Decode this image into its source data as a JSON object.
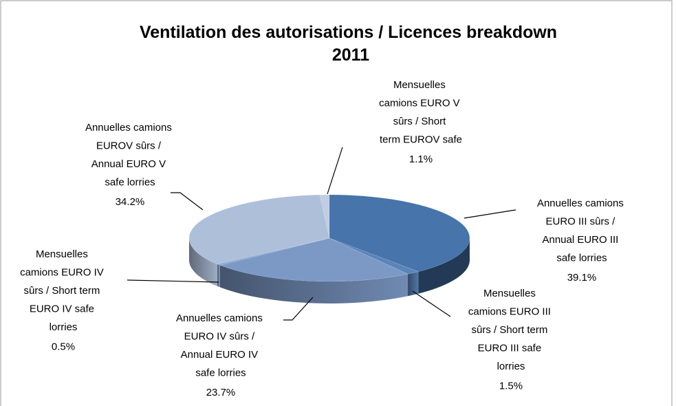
{
  "chart_data": {
    "type": "pie3d",
    "title": "Ventilation des autorisations / Licences breakdown 2011",
    "categories": [
      "Annuelles camions EURO III sûrs / Annual EURO III safe lorries",
      "Mensuelles camions EURO III sûrs / Short term EURO III safe lorries",
      "Annuelles camions EURO IV sûrs / Annual EURO IV safe lorries",
      "Mensuelles camions EURO IV sûrs / Short term EURO IV safe lorries",
      "Annuelles camions EUROV sûrs / Annual EURO V safe lorries",
      "Mensuelles camions EURO V sûrs / Short term EUROV safe lorries"
    ],
    "values": [
      39.1,
      1.5,
      23.7,
      0.5,
      34.2,
      1.1
    ],
    "value_labels": [
      "39.1%",
      "1.5%",
      "23.7%",
      "0.5%",
      "34.2%",
      "1.1%"
    ],
    "colors": [
      "#4674ab",
      "#5b84b9",
      "#7c99c6",
      "#8aa6cf",
      "#aebfda",
      "#c0cde3"
    ]
  }
}
